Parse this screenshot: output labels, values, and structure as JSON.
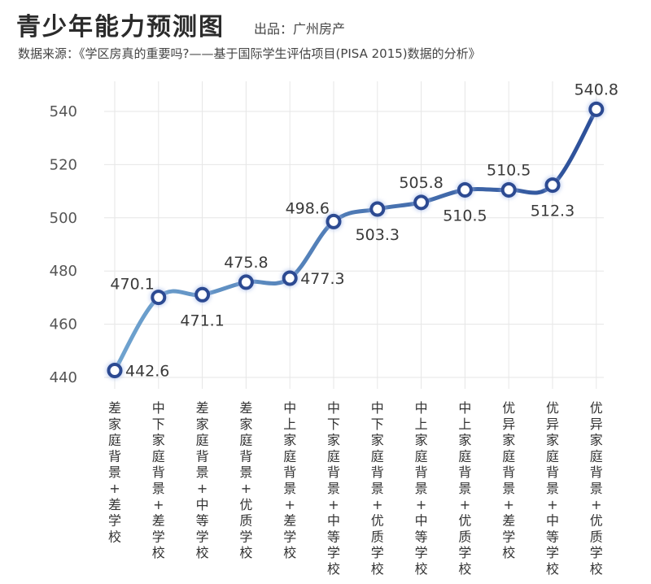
{
  "header": {
    "title": "青少年能力预测图",
    "source_tag": "出品：广州房产",
    "data_source": "数据来源：《学区房真的重要吗?——基于国际学生评估项目(PISA 2015)数据的分析》"
  },
  "colors": {
    "line_start": "#6fa3cf",
    "line_end": "#2c4f99",
    "marker_stroke": "#2c4a92",
    "marker_fill": "#ffffff",
    "grid": "#e6e6e6"
  },
  "chart_data": {
    "type": "line",
    "title": "青少年能力预测图",
    "xlabel": "",
    "ylabel": "",
    "ylim": [
      440,
      545
    ],
    "yticks": [
      440,
      460,
      480,
      500,
      520,
      540
    ],
    "grid": true,
    "categories": [
      "差家庭背景+差学校",
      "中下家庭背景+差学校",
      "差家庭背景+中等学校",
      "差家庭背景+优质学校",
      "中上家庭背景+差学校",
      "中下家庭背景+中等学校",
      "中下家庭背景+优质学校",
      "中上家庭背景+中等学校",
      "中上家庭背景+优质学校",
      "优异家庭背景+差学校",
      "优异家庭背景+中等学校",
      "优异家庭背景+优质学校"
    ],
    "values": [
      442.6,
      470.1,
      471.1,
      475.8,
      477.3,
      498.6,
      503.3,
      505.8,
      510.5,
      510.5,
      512.3,
      540.8
    ],
    "data_labels": [
      "442.6",
      "470.1",
      "471.1",
      "475.8",
      "477.3",
      "498.6",
      "503.3",
      "505.8",
      "510.5",
      "510.5",
      "512.3",
      "540.8"
    ],
    "label_positions": [
      "right",
      "left",
      "below",
      "above",
      "right",
      "left",
      "below",
      "above",
      "below",
      "above",
      "below",
      "above"
    ]
  }
}
